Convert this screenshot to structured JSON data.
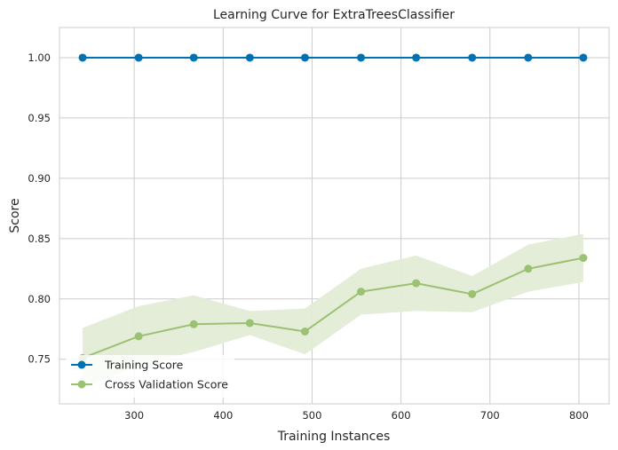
{
  "chart_data": {
    "type": "line",
    "title": "Learning Curve for ExtraTreesClassifier",
    "xlabel": "Training Instances",
    "ylabel": "Score",
    "xlim": [
      216,
      834
    ],
    "ylim": [
      0.713,
      1.025
    ],
    "xticks": [
      300,
      400,
      500,
      600,
      700,
      800
    ],
    "xtick_labels": [
      "300",
      "400",
      "500",
      "600",
      "700",
      "800"
    ],
    "yticks": [
      0.75,
      0.8,
      0.85,
      0.9,
      0.95,
      1.0
    ],
    "ytick_labels": [
      "0.75",
      "0.80",
      "0.85",
      "0.90",
      "0.95",
      "1.00"
    ],
    "grid": true,
    "legend_position": "bottom-left",
    "x": [
      242,
      305,
      367,
      430,
      492,
      555,
      617,
      680,
      743,
      805
    ],
    "series": [
      {
        "name": "Training Score",
        "color": "#0072b2",
        "band_color": "#0072b2",
        "values": [
          1.0,
          1.0,
          1.0,
          1.0,
          1.0,
          1.0,
          1.0,
          1.0,
          1.0,
          1.0
        ],
        "lower": [
          1.0,
          1.0,
          1.0,
          1.0,
          1.0,
          1.0,
          1.0,
          1.0,
          1.0,
          1.0
        ],
        "upper": [
          1.0,
          1.0,
          1.0,
          1.0,
          1.0,
          1.0,
          1.0,
          1.0,
          1.0,
          1.0
        ]
      },
      {
        "name": "Cross Validation Score",
        "color": "#9bc172",
        "band_color": "#e3ecd6",
        "values": [
          0.751,
          0.769,
          0.779,
          0.78,
          0.773,
          0.806,
          0.813,
          0.804,
          0.825,
          0.834
        ],
        "lower": [
          0.726,
          0.745,
          0.756,
          0.77,
          0.754,
          0.787,
          0.79,
          0.789,
          0.806,
          0.814
        ],
        "upper": [
          0.776,
          0.794,
          0.803,
          0.79,
          0.792,
          0.825,
          0.836,
          0.819,
          0.845,
          0.854
        ]
      }
    ]
  }
}
